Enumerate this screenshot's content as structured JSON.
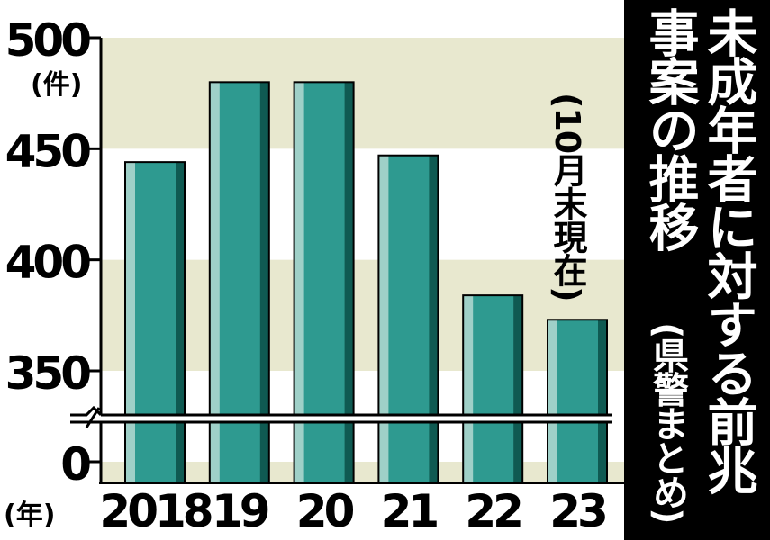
{
  "title": {
    "line1": "未成年者に対する前兆",
    "line2": "事案の推移"
  },
  "source": "(県警まとめ)",
  "note": "(10月末現在)",
  "unit_label": "(件)",
  "year_unit_label": "(年)",
  "colors": {
    "band": "#e8e8cf",
    "bar_main": "#2e9a90",
    "bar_light": "#9fd0c8",
    "bar_dark": "#0f5a52",
    "title_bg": "#000000",
    "title_text": "#ffffff"
  },
  "chart_data": {
    "type": "bar",
    "categories": [
      "2018",
      "19",
      "20",
      "21",
      "22",
      "23"
    ],
    "values": [
      444,
      480,
      480,
      447,
      384,
      373
    ],
    "y_ticks": [
      "500",
      "450",
      "400",
      "350",
      "0"
    ],
    "ylim": [
      330,
      500
    ],
    "axis_break": true,
    "grid": false,
    "legend": false
  }
}
